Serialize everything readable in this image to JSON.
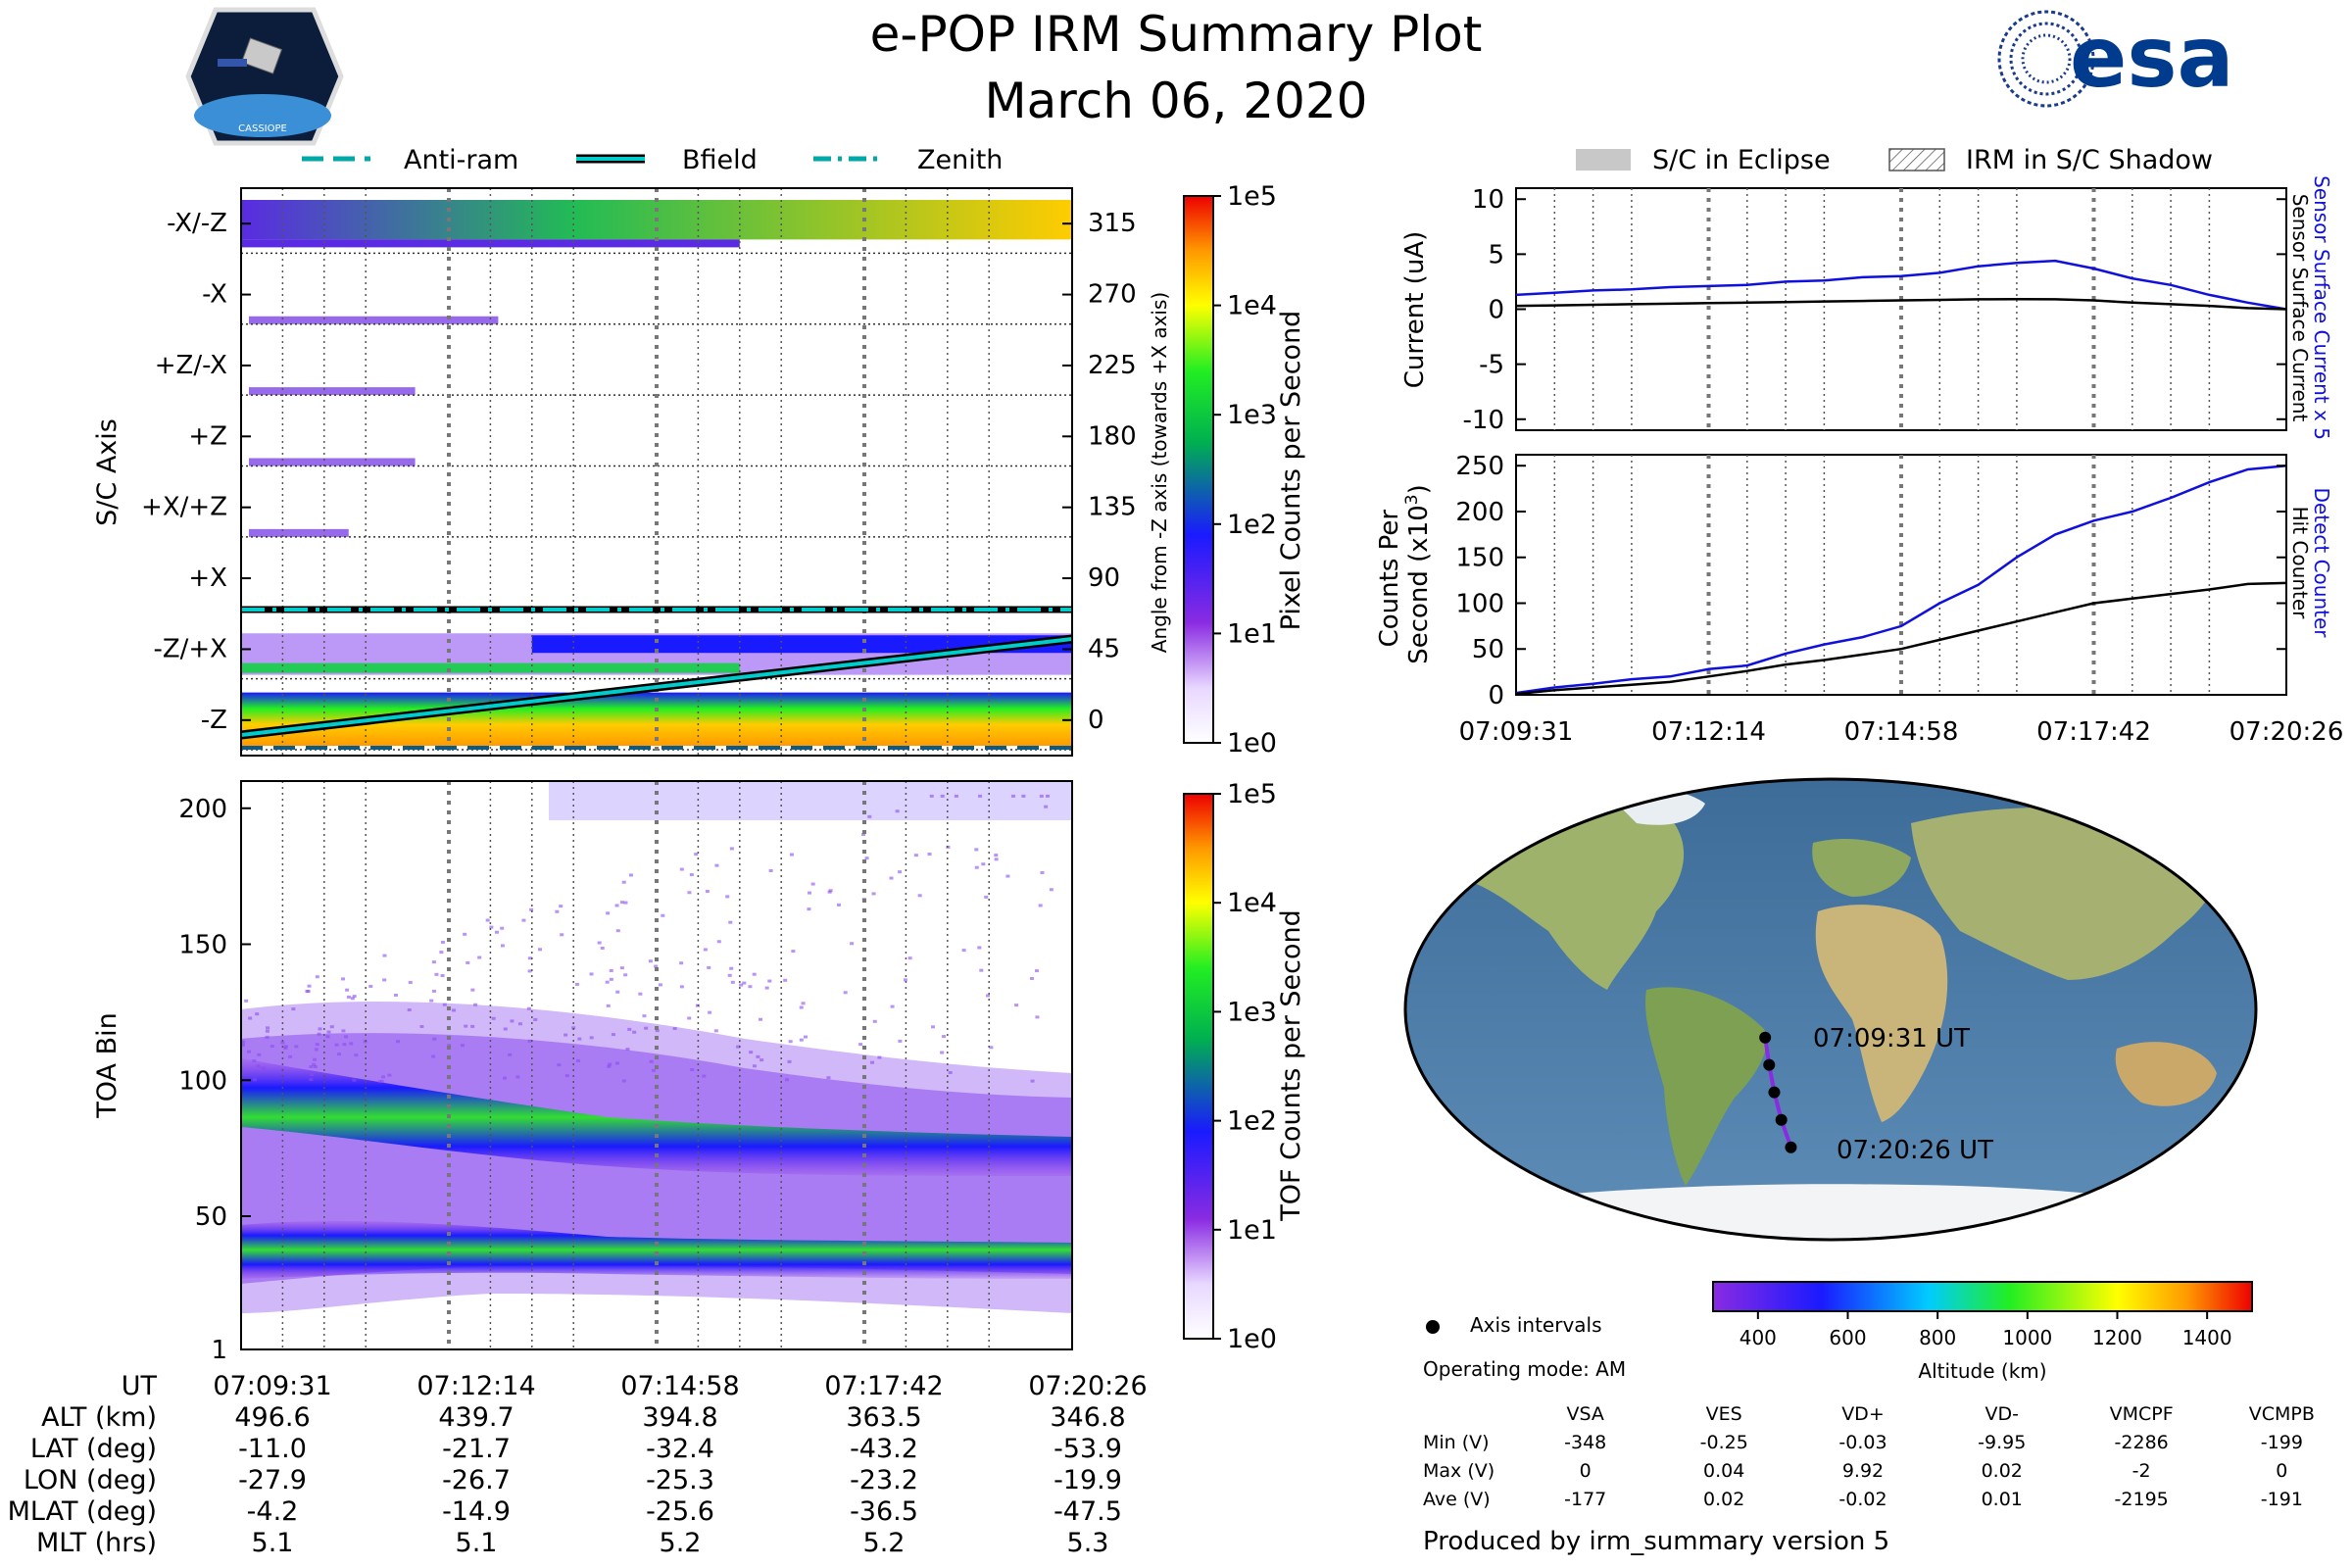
{
  "header": {
    "title": "e-POP IRM Summary Plot",
    "date": "March 06, 2020",
    "esa_logo_text": "esa",
    "cassiope_badge_text": "CASSIOPE"
  },
  "legends": {
    "top_left": [
      "Anti-ram",
      "Bfield",
      "Zenith"
    ],
    "top_right": [
      "S/C in Eclipse",
      "IRM in S/C Shadow"
    ]
  },
  "colors": {
    "current_blue": "#1010dd",
    "black": "#000000",
    "eclipse_grey": "#c8c8c8",
    "track_purple": "#8a2be2"
  },
  "chart_data": [
    {
      "type": "heatmap",
      "id": "pixel-counts",
      "ylabel": "S/C Axis",
      "yticks": [
        "-X/-Z",
        "-X",
        "+Z/-X",
        "+Z",
        "+X/+Z",
        "+X",
        "-Z/+X",
        "-Z"
      ],
      "right_label": "Angle from -Z axis (towards +X axis)",
      "right_ticks": [
        315,
        270,
        225,
        180,
        135,
        90,
        45,
        0
      ],
      "colorbar": {
        "label": "Pixel Counts per Second",
        "ticks": [
          "1e5",
          "1e4",
          "1e3",
          "1e2",
          "1e1",
          "1e0"
        ],
        "range": [
          1,
          100000
        ],
        "scale": "log"
      },
      "x_range": [
        "07:09:31",
        "07:20:26"
      ]
    },
    {
      "type": "heatmap",
      "id": "tof-counts",
      "ylabel": "TOA Bin",
      "yticks": [
        200,
        150,
        100,
        50,
        1
      ],
      "ylim": [
        1,
        210
      ],
      "colorbar": {
        "label": "TOF Counts per Second",
        "ticks": [
          "1e5",
          "1e4",
          "1e3",
          "1e2",
          "1e1",
          "1e0"
        ],
        "range": [
          1,
          100000
        ],
        "scale": "log"
      },
      "x_range": [
        "07:09:31",
        "07:20:26"
      ]
    },
    {
      "type": "line",
      "id": "surface-current",
      "ylabel": "Current (uA)",
      "ylim": [
        -11,
        11
      ],
      "yticks": [
        10,
        5,
        0,
        -5,
        -10
      ],
      "x": [
        0,
        0.05,
        0.1,
        0.15,
        0.2,
        0.25,
        0.3,
        0.35,
        0.4,
        0.45,
        0.5,
        0.55,
        0.6,
        0.65,
        0.7,
        0.75,
        0.8,
        0.85,
        0.9,
        0.95,
        1.0
      ],
      "series": [
        {
          "name": "Sensor Surface Current x 5",
          "color": "blue",
          "values": [
            1.3,
            1.5,
            1.7,
            1.8,
            2.0,
            2.1,
            2.2,
            2.5,
            2.6,
            2.9,
            3.0,
            3.3,
            3.9,
            4.2,
            4.4,
            3.7,
            2.8,
            2.2,
            1.3,
            0.6,
            0.0
          ]
        },
        {
          "name": "Sensor Surface Current",
          "color": "black",
          "values": [
            0.3,
            0.35,
            0.4,
            0.45,
            0.5,
            0.55,
            0.6,
            0.65,
            0.7,
            0.75,
            0.8,
            0.85,
            0.9,
            0.92,
            0.9,
            0.8,
            0.6,
            0.45,
            0.3,
            0.1,
            0.0
          ]
        }
      ]
    },
    {
      "type": "line",
      "id": "counts",
      "ylabel_lines": [
        "Counts Per",
        "Second (x10",
        "3",
        ")"
      ],
      "ylim": [
        0,
        262
      ],
      "yticks": [
        250,
        200,
        150,
        100,
        50,
        0
      ],
      "x": [
        0,
        0.05,
        0.1,
        0.15,
        0.2,
        0.25,
        0.3,
        0.35,
        0.4,
        0.45,
        0.5,
        0.55,
        0.6,
        0.65,
        0.7,
        0.75,
        0.8,
        0.85,
        0.9,
        0.95,
        1.0
      ],
      "series": [
        {
          "name": "Detect Counter",
          "color": "blue",
          "values": [
            2,
            8,
            12,
            17,
            20,
            28,
            32,
            45,
            55,
            63,
            75,
            100,
            120,
            150,
            175,
            190,
            200,
            215,
            232,
            246,
            250
          ]
        },
        {
          "name": "Hit Counter",
          "color": "black",
          "values": [
            1,
            5,
            8,
            11,
            14,
            20,
            26,
            33,
            38,
            44,
            50,
            60,
            70,
            80,
            90,
            100,
            105,
            110,
            115,
            121,
            122
          ]
        }
      ],
      "xticks": [
        "07:09:31",
        "07:12:14",
        "07:14:58",
        "07:17:42",
        "07:20:26"
      ]
    }
  ],
  "map": {
    "start_label": "07:09:31 UT",
    "end_label": "07:20:26 UT",
    "track_lat": [
      -11.0,
      -21.7,
      -32.4,
      -43.2,
      -53.9
    ],
    "track_lon": [
      -27.9,
      -26.7,
      -25.3,
      -23.2,
      -19.9
    ],
    "altitude_colorbar": {
      "label": "Altitude (km)",
      "ticks": [
        400,
        600,
        800,
        1000,
        1200,
        1400
      ],
      "range": [
        300,
        1500
      ]
    },
    "axis_intervals_label": "Axis intervals",
    "operating_mode": "Operating mode: AM"
  },
  "ephemeris": {
    "rows": [
      {
        "label": "UT",
        "values": [
          "07:09:31",
          "07:12:14",
          "07:14:58",
          "07:17:42",
          "07:20:26"
        ]
      },
      {
        "label": "ALT (km)",
        "values": [
          "496.6",
          "439.7",
          "394.8",
          "363.5",
          "346.8"
        ]
      },
      {
        "label": "LAT (deg)",
        "values": [
          "-11.0",
          "-21.7",
          "-32.4",
          "-43.2",
          "-53.9"
        ]
      },
      {
        "label": "LON (deg)",
        "values": [
          "-27.9",
          "-26.7",
          "-25.3",
          "-23.2",
          "-19.9"
        ]
      },
      {
        "label": "MLAT (deg)",
        "values": [
          "-4.2",
          "-14.9",
          "-25.6",
          "-36.5",
          "-47.5"
        ]
      },
      {
        "label": "MLT (hrs)",
        "values": [
          "5.1",
          "5.1",
          "5.2",
          "5.2",
          "5.3"
        ]
      }
    ]
  },
  "voltages": {
    "headers": [
      "VSA",
      "VES",
      "VD+",
      "VD-",
      "VMCPF",
      "VCMPB"
    ],
    "rows": [
      {
        "label": "Min (V)",
        "values": [
          "-348",
          "-0.25",
          "-0.03",
          "-9.95",
          "-2286",
          "-199"
        ]
      },
      {
        "label": "Max (V)",
        "values": [
          "0",
          "0.04",
          "9.92",
          "0.02",
          "-2",
          "0"
        ]
      },
      {
        "label": "Ave (V)",
        "values": [
          "-177",
          "0.02",
          "-0.02",
          "0.01",
          "-2195",
          "-191"
        ]
      }
    ]
  },
  "footer": "Produced by irm_summary version 5"
}
